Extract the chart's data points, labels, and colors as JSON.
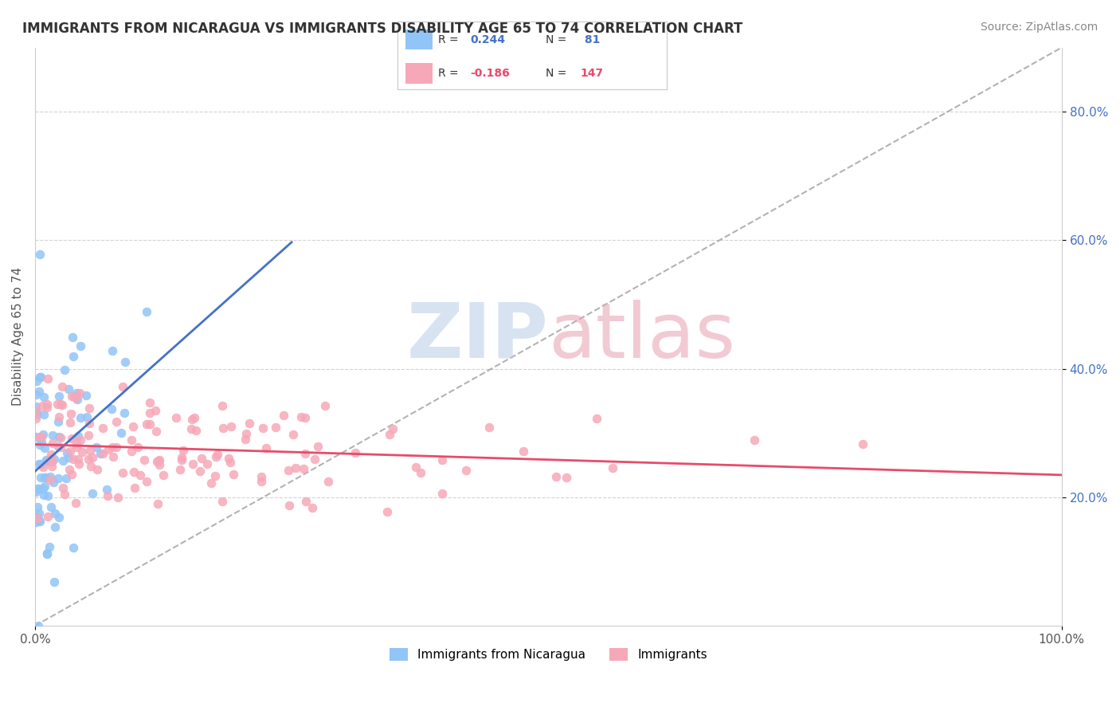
{
  "title": "IMMIGRANTS FROM NICARAGUA VS IMMIGRANTS DISABILITY AGE 65 TO 74 CORRELATION CHART",
  "source": "Source: ZipAtlas.com",
  "ylabel": "Disability Age 65 to 74",
  "ylabel_right_ticks": [
    "20.0%",
    "40.0%",
    "60.0%",
    "80.0%"
  ],
  "ylabel_right_vals": [
    0.2,
    0.4,
    0.6,
    0.8
  ],
  "legend_series1_label": "Immigrants from Nicaragua",
  "legend_series2_label": "Immigrants",
  "R1": 0.244,
  "N1": 81,
  "R2": -0.186,
  "N2": 147,
  "color1": "#92C5F7",
  "color2": "#F7A8B8",
  "trend1_color": "#4472C4",
  "trend2_color": "#E84B6C",
  "watermark_color1": "#B8CCE8",
  "watermark_color2": "#E8A0B0",
  "background_color": "#FFFFFF",
  "xlim": [
    0.0,
    1.0
  ],
  "ylim": [
    0.0,
    0.9
  ],
  "seed1": 42,
  "seed2": 99,
  "n1": 81,
  "n2": 147
}
